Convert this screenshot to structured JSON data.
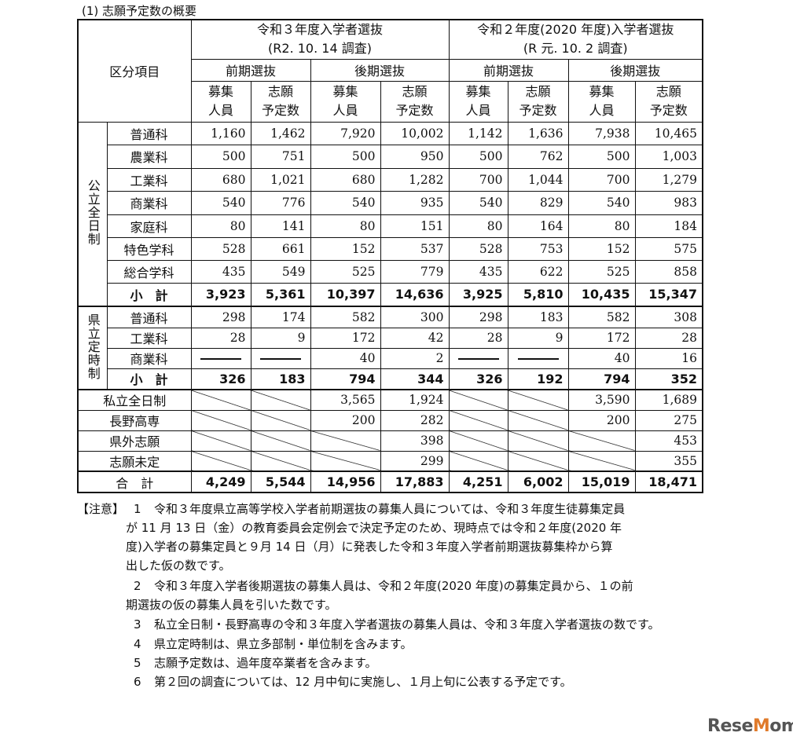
{
  "title": "(1) 志願予定数の概要",
  "header": {
    "category": "区分項目",
    "groups": [
      {
        "name": "令和３年度入学者選抜",
        "sub": "(R2. 10. 14 調査)"
      },
      {
        "name": "令和２年度(2020 年度)入学者選抜",
        "sub": "(R 元. 10. 2 調査)"
      }
    ],
    "phases": [
      "前期選抜",
      "後期選抜",
      "前期選抜",
      "後期選抜"
    ],
    "cols": [
      [
        "募集",
        "人員"
      ],
      [
        "志願",
        "予定数"
      ],
      [
        "募集",
        "人員"
      ],
      [
        "志願",
        "予定数"
      ],
      [
        "募集",
        "人員"
      ],
      [
        "志願",
        "予定数"
      ],
      [
        "募集",
        "人員"
      ],
      [
        "志願",
        "予定数"
      ]
    ]
  },
  "sections": [
    {
      "label": "公立全日制",
      "rows": [
        {
          "name": "普通科",
          "values": [
            "1,160",
            "1,462",
            "7,920",
            "10,002",
            "1,142",
            "1,636",
            "7,938",
            "10,465"
          ]
        },
        {
          "name": "農業科",
          "values": [
            "500",
            "751",
            "500",
            "950",
            "500",
            "762",
            "500",
            "1,003"
          ]
        },
        {
          "name": "工業科",
          "values": [
            "680",
            "1,021",
            "680",
            "1,282",
            "700",
            "1,044",
            "700",
            "1,279"
          ]
        },
        {
          "name": "商業科",
          "values": [
            "540",
            "776",
            "540",
            "935",
            "540",
            "829",
            "540",
            "983"
          ]
        },
        {
          "name": "家庭科",
          "values": [
            "80",
            "141",
            "80",
            "151",
            "80",
            "164",
            "80",
            "184"
          ]
        },
        {
          "name": "特色学科",
          "values": [
            "528",
            "661",
            "152",
            "537",
            "528",
            "753",
            "152",
            "575"
          ]
        },
        {
          "name": "総合学科",
          "values": [
            "435",
            "549",
            "525",
            "779",
            "435",
            "622",
            "525",
            "858"
          ]
        },
        {
          "name": "小　計",
          "bold": true,
          "values": [
            "3,923",
            "5,361",
            "10,397",
            "14,636",
            "3,925",
            "5,810",
            "10,435",
            "15,347"
          ]
        }
      ]
    },
    {
      "label": "県立定時制",
      "rows": [
        {
          "name": "普通科",
          "values": [
            "298",
            "174",
            "582",
            "300",
            "298",
            "183",
            "582",
            "308"
          ]
        },
        {
          "name": "工業科",
          "values": [
            "28",
            "9",
            "172",
            "42",
            "28",
            "9",
            "172",
            "28"
          ]
        },
        {
          "name": "商業科",
          "values": [
            "—",
            "—",
            "40",
            "2",
            "—",
            "—",
            "40",
            "16"
          ]
        },
        {
          "name": "小　計",
          "bold": true,
          "values": [
            "326",
            "183",
            "794",
            "344",
            "326",
            "192",
            "794",
            "352"
          ]
        }
      ]
    }
  ],
  "other_rows": [
    {
      "name": "私立全日制",
      "values": [
        null,
        null,
        "3,565",
        "1,924",
        null,
        null,
        "3,590",
        "1,689"
      ]
    },
    {
      "name": "長野高専",
      "values": [
        null,
        null,
        "200",
        "282",
        null,
        null,
        "200",
        "275"
      ]
    },
    {
      "name": "県外志願",
      "values": [
        null,
        null,
        null,
        "398",
        null,
        null,
        null,
        "453"
      ]
    },
    {
      "name": "志願未定",
      "values": [
        null,
        null,
        null,
        "299",
        null,
        null,
        null,
        "355"
      ]
    },
    {
      "name": "合　計",
      "bold": true,
      "values": [
        "4,249",
        "5,544",
        "14,956",
        "17,883",
        "4,251",
        "6,002",
        "15,019",
        "18,471"
      ]
    }
  ],
  "notes": {
    "label": "【注意】",
    "lines": [
      {
        "num": "1",
        "text": "令和３年度県立高等学校入学者前期選抜の募集人員については、令和３年度生徒募集定員"
      },
      {
        "num": "",
        "text": "が 11 月 13 日（金）の教育委員会定例会で決定予定のため、現時点では令和２年度(2020 年"
      },
      {
        "num": "",
        "text": "度)入学者の募集定員と９月 14 日（月）に発表した令和３年度入学者前期選抜募集枠から算"
      },
      {
        "num": "",
        "text": "出した仮の数です。"
      },
      {
        "num": "2",
        "text": "令和３年度入学者後期選抜の募集人員は、令和２年度(2020 年度)の募集定員から、１の前"
      },
      {
        "num": "",
        "text": "期選抜の仮の募集人員を引いた数です。"
      },
      {
        "num": "3",
        "text": "私立全日制・長野高専の令和３年度入学者選抜の募集人員は、令和３年度入学者選抜の数です。"
      },
      {
        "num": "4",
        "text": "県立定時制は、県立多部制・単位制を含みます。"
      },
      {
        "num": "5",
        "text": "志願予定数は、過年度卒業者を含みます。"
      },
      {
        "num": "6",
        "text": "第２回の調査については、12 月中旬に実施し、１月上旬に公表する予定です。"
      }
    ]
  },
  "watermark": "ReseMom"
}
